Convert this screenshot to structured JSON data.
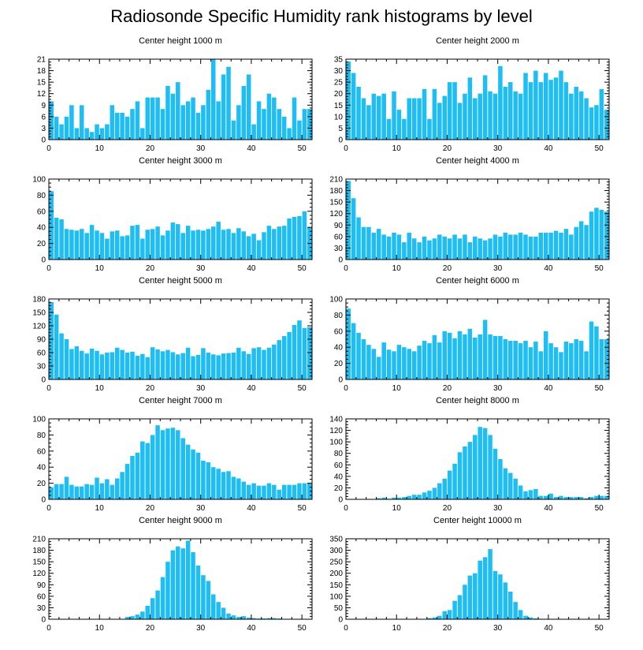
{
  "figure": {
    "title": "Radiosonde Specific Humidity rank histograms by level",
    "bar_color": "#1EBEF5"
  },
  "chart_data": [
    {
      "type": "bar",
      "title": "Center height 1000 m",
      "xlim": [
        0,
        52
      ],
      "ylim": [
        0,
        21
      ],
      "xticks": [
        0,
        10,
        20,
        30,
        40,
        50
      ],
      "yticks": [
        0,
        3,
        6,
        9,
        12,
        15,
        18,
        21
      ],
      "values": [
        10,
        6,
        4,
        6,
        9,
        3,
        9,
        3,
        2,
        4,
        3,
        4,
        9,
        7,
        7,
        6,
        8,
        10,
        3,
        11,
        11,
        11,
        8,
        14,
        12,
        15,
        9,
        10,
        11,
        7,
        9,
        13,
        21,
        10,
        17,
        19,
        5,
        9,
        14,
        17,
        4,
        10,
        8,
        12,
        11,
        8,
        6,
        3,
        11,
        5,
        8,
        8
      ]
    },
    {
      "type": "bar",
      "title": "Center height 2000 m",
      "xlim": [
        0,
        52
      ],
      "ylim": [
        0,
        35
      ],
      "xticks": [
        0,
        10,
        20,
        30,
        40,
        50
      ],
      "yticks": [
        0,
        5,
        10,
        15,
        20,
        25,
        30,
        35
      ],
      "values": [
        34,
        29,
        23,
        18,
        15,
        20,
        19,
        20,
        9,
        21,
        13,
        9,
        18,
        18,
        18,
        22,
        9,
        22,
        16,
        19,
        25,
        25,
        16,
        20,
        27,
        18,
        20,
        28,
        21,
        20,
        32,
        23,
        25,
        21,
        20,
        29,
        25,
        30,
        25,
        29,
        26,
        27,
        30,
        25,
        20,
        23,
        21,
        18,
        14,
        15,
        22,
        13
      ]
    },
    {
      "type": "bar",
      "title": "Center height 3000 m",
      "xlim": [
        0,
        52
      ],
      "ylim": [
        0,
        100
      ],
      "xticks": [
        0,
        10,
        20,
        30,
        40,
        50
      ],
      "yticks": [
        0,
        20,
        40,
        60,
        80,
        100
      ],
      "values": [
        85,
        52,
        50,
        38,
        37,
        36,
        38,
        33,
        43,
        36,
        33,
        26,
        35,
        36,
        29,
        30,
        42,
        43,
        26,
        37,
        38,
        41,
        30,
        36,
        46,
        44,
        33,
        42,
        36,
        37,
        36,
        38,
        41,
        47,
        37,
        38,
        33,
        39,
        35,
        29,
        32,
        24,
        34,
        42,
        38,
        41,
        42,
        51,
        53,
        54,
        60,
        40
      ]
    },
    {
      "type": "bar",
      "title": "Center height 4000 m",
      "xlim": [
        0,
        52
      ],
      "ylim": [
        0,
        210
      ],
      "xticks": [
        0,
        10,
        20,
        30,
        40,
        50
      ],
      "yticks": [
        0,
        30,
        60,
        90,
        120,
        150,
        180,
        210
      ],
      "values": [
        205,
        160,
        110,
        85,
        85,
        70,
        80,
        65,
        60,
        70,
        65,
        45,
        70,
        55,
        45,
        60,
        50,
        55,
        65,
        60,
        55,
        65,
        55,
        65,
        45,
        60,
        55,
        50,
        55,
        65,
        60,
        70,
        65,
        65,
        70,
        65,
        60,
        60,
        70,
        70,
        70,
        75,
        70,
        80,
        65,
        85,
        100,
        90,
        125,
        135,
        130,
        125
      ]
    },
    {
      "type": "bar",
      "title": "Center height 5000 m",
      "xlim": [
        0,
        52
      ],
      "ylim": [
        0,
        180
      ],
      "xticks": [
        0,
        10,
        20,
        30,
        40,
        50
      ],
      "yticks": [
        0,
        30,
        60,
        90,
        120,
        150,
        180
      ],
      "values": [
        173,
        145,
        103,
        90,
        68,
        74,
        64,
        58,
        69,
        64,
        56,
        60,
        61,
        71,
        66,
        60,
        62,
        53,
        57,
        50,
        72,
        67,
        63,
        66,
        61,
        56,
        59,
        71,
        52,
        55,
        70,
        60,
        56,
        54,
        58,
        59,
        60,
        71,
        63,
        57,
        70,
        72,
        66,
        71,
        78,
        88,
        97,
        106,
        122,
        132,
        115,
        117
      ]
    },
    {
      "type": "bar",
      "title": "Center height 6000 m",
      "xlim": [
        0,
        52
      ],
      "ylim": [
        0,
        100
      ],
      "xticks": [
        0,
        10,
        20,
        30,
        40,
        50
      ],
      "yticks": [
        0,
        20,
        40,
        60,
        80,
        100
      ],
      "values": [
        88,
        70,
        58,
        50,
        43,
        38,
        28,
        46,
        37,
        35,
        43,
        40,
        38,
        35,
        42,
        48,
        45,
        55,
        46,
        60,
        58,
        51,
        60,
        56,
        63,
        52,
        56,
        74,
        56,
        54,
        54,
        50,
        48,
        48,
        45,
        48,
        40,
        47,
        35,
        60,
        45,
        40,
        34,
        47,
        45,
        50,
        48,
        35,
        72,
        66,
        50,
        50
      ]
    },
    {
      "type": "bar",
      "title": "Center height 7000 m",
      "xlim": [
        0,
        52
      ],
      "ylim": [
        0,
        100
      ],
      "xticks": [
        0,
        10,
        20,
        30,
        40,
        50
      ],
      "yticks": [
        0,
        20,
        40,
        60,
        80,
        100
      ],
      "values": [
        15,
        19,
        19,
        28,
        18,
        16,
        16,
        19,
        18,
        27,
        20,
        25,
        18,
        26,
        34,
        44,
        54,
        58,
        72,
        70,
        80,
        92,
        86,
        88,
        89,
        86,
        76,
        68,
        62,
        58,
        48,
        46,
        40,
        38,
        34,
        35,
        28,
        26,
        22,
        18,
        20,
        17,
        17,
        20,
        18,
        12,
        18,
        18,
        18,
        20,
        20,
        20
      ]
    },
    {
      "type": "bar",
      "title": "Center height 8000 m",
      "xlim": [
        0,
        52
      ],
      "ylim": [
        0,
        140
      ],
      "xticks": [
        0,
        10,
        20,
        30,
        40,
        50
      ],
      "yticks": [
        0,
        20,
        40,
        60,
        80,
        100,
        120,
        140
      ],
      "values": [
        0,
        0,
        0,
        0,
        0,
        0,
        2,
        3,
        1,
        3,
        3,
        4,
        6,
        8,
        8,
        12,
        15,
        20,
        28,
        36,
        50,
        62,
        82,
        92,
        100,
        112,
        126,
        124,
        112,
        88,
        70,
        54,
        46,
        36,
        24,
        14,
        16,
        18,
        6,
        6,
        10,
        4,
        6,
        4,
        4,
        4,
        4,
        2,
        4,
        6,
        6,
        6
      ]
    },
    {
      "type": "bar",
      "title": "Center height 9000 m",
      "xlim": [
        0,
        52
      ],
      "ylim": [
        0,
        210
      ],
      "xticks": [
        0,
        10,
        20,
        30,
        40,
        50
      ],
      "yticks": [
        0,
        30,
        60,
        90,
        120,
        150,
        180,
        210
      ],
      "values": [
        0,
        0,
        0,
        0,
        0,
        0,
        0,
        0,
        0,
        0,
        0,
        0,
        0,
        0,
        0,
        6,
        8,
        12,
        20,
        35,
        55,
        75,
        110,
        150,
        180,
        190,
        185,
        205,
        175,
        140,
        115,
        100,
        65,
        45,
        30,
        15,
        10,
        6,
        8,
        4,
        3,
        2,
        2,
        3,
        3,
        2,
        0,
        0,
        0,
        0,
        0,
        0
      ]
    },
    {
      "type": "bar",
      "title": "Center height 10000 m",
      "xlim": [
        0,
        52
      ],
      "ylim": [
        0,
        350
      ],
      "xticks": [
        0,
        10,
        20,
        30,
        40,
        50
      ],
      "yticks": [
        0,
        50,
        100,
        150,
        200,
        250,
        300,
        350
      ],
      "values": [
        0,
        0,
        0,
        0,
        0,
        0,
        0,
        0,
        0,
        0,
        0,
        0,
        0,
        0,
        0,
        0,
        5,
        8,
        15,
        35,
        40,
        80,
        105,
        150,
        190,
        200,
        255,
        270,
        305,
        210,
        195,
        160,
        120,
        75,
        40,
        15,
        8,
        4,
        2,
        2,
        1,
        1,
        1,
        0,
        0,
        0,
        0,
        0,
        0,
        0,
        0,
        0
      ]
    }
  ]
}
